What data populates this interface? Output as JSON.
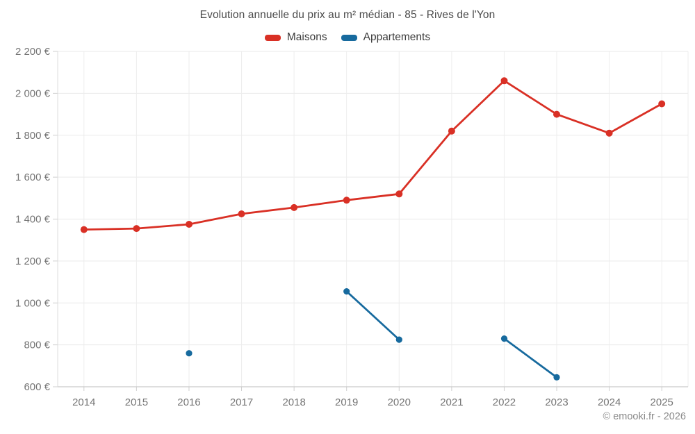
{
  "footer": {
    "copyright": "© emooki.fr - 2026"
  },
  "chart_data": {
    "type": "line",
    "title": "Evolution annuelle du prix au m² médian - 85 - Rives de l'Yon",
    "categories": [
      "2014",
      "2015",
      "2016",
      "2017",
      "2018",
      "2019",
      "2020",
      "2021",
      "2022",
      "2023",
      "2024",
      "2025"
    ],
    "series": [
      {
        "name": "Maisons",
        "color": "#d93025",
        "values": [
          1350,
          1355,
          1375,
          1425,
          1455,
          1490,
          1520,
          1820,
          2060,
          1900,
          1810,
          1950
        ]
      },
      {
        "name": "Appartements",
        "color": "#176a9e",
        "values": [
          null,
          null,
          760,
          null,
          null,
          1055,
          825,
          null,
          830,
          645,
          null,
          null
        ]
      }
    ],
    "ylim": [
      600,
      2200
    ],
    "ytick_step": 200,
    "ytick_labels": [
      "600 €",
      "800 €",
      "1 000 €",
      "1 200 €",
      "1 400 €",
      "1 600 €",
      "1 800 €",
      "2 000 €",
      "2 200 €"
    ],
    "grid": true,
    "legend_position": "top",
    "currency_suffix": " €"
  }
}
